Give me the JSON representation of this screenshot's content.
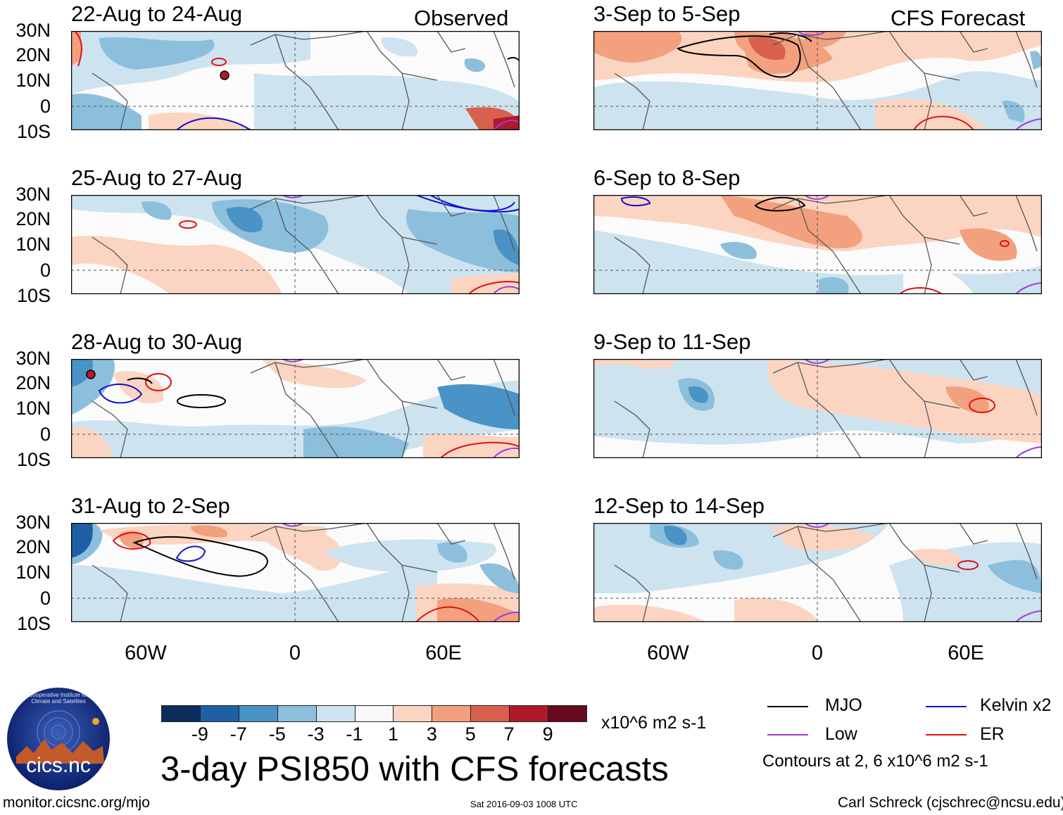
{
  "panels_left": [
    {
      "title": "22-Aug to 24-Aug",
      "corner": "Observed"
    },
    {
      "title": "25-Aug to 27-Aug",
      "corner": ""
    },
    {
      "title": "28-Aug to 30-Aug",
      "corner": ""
    },
    {
      "title": "31-Aug to 2-Sep",
      "corner": ""
    }
  ],
  "panels_right": [
    {
      "title": "3-Sep to 5-Sep",
      "corner": "CFS Forecast"
    },
    {
      "title": "6-Sep to 8-Sep",
      "corner": ""
    },
    {
      "title": "9-Sep to 11-Sep",
      "corner": ""
    },
    {
      "title": "12-Sep to 14-Sep",
      "corner": ""
    }
  ],
  "lat_labels": [
    "30N",
    "20N",
    "10N",
    "0",
    "10S"
  ],
  "lon_labels": [
    "60W",
    "0",
    "60E"
  ],
  "colorbar": {
    "colors": [
      "#0c2c5c",
      "#1f5fa6",
      "#4a93c6",
      "#8cbfdc",
      "#cde3f0",
      "#f9f9f9",
      "#fbd5c2",
      "#f2a07e",
      "#d8604c",
      "#b2182b",
      "#670a1f"
    ],
    "ticks": [
      "-9",
      "-7",
      "-5",
      "-3",
      "-1",
      "1",
      "3",
      "5",
      "7",
      "9"
    ],
    "units": "x10^6 m2 s-1"
  },
  "title": "3-day PSI850 with CFS forecasts",
  "legend": {
    "items": [
      {
        "label": "MJO",
        "color": "#000000"
      },
      {
        "label": "Kelvin x2",
        "color": "#1010d0"
      },
      {
        "label": "Low",
        "color": "#9a3ee0"
      },
      {
        "label": "ER",
        "color": "#e01010"
      }
    ],
    "note": "Contours at 2, 6 x10^6 m2 s-1"
  },
  "logo_text": "cics.nc",
  "logo_ring_text": "Cooperative Institute for Climate and Satellites",
  "footer": {
    "url": "monitor.cicsnc.org/mjo",
    "timestamp": "Sat 2016-09-03 1008 UTC",
    "author": "Carl Schreck (cjschrec@ncsu.edu)"
  }
}
